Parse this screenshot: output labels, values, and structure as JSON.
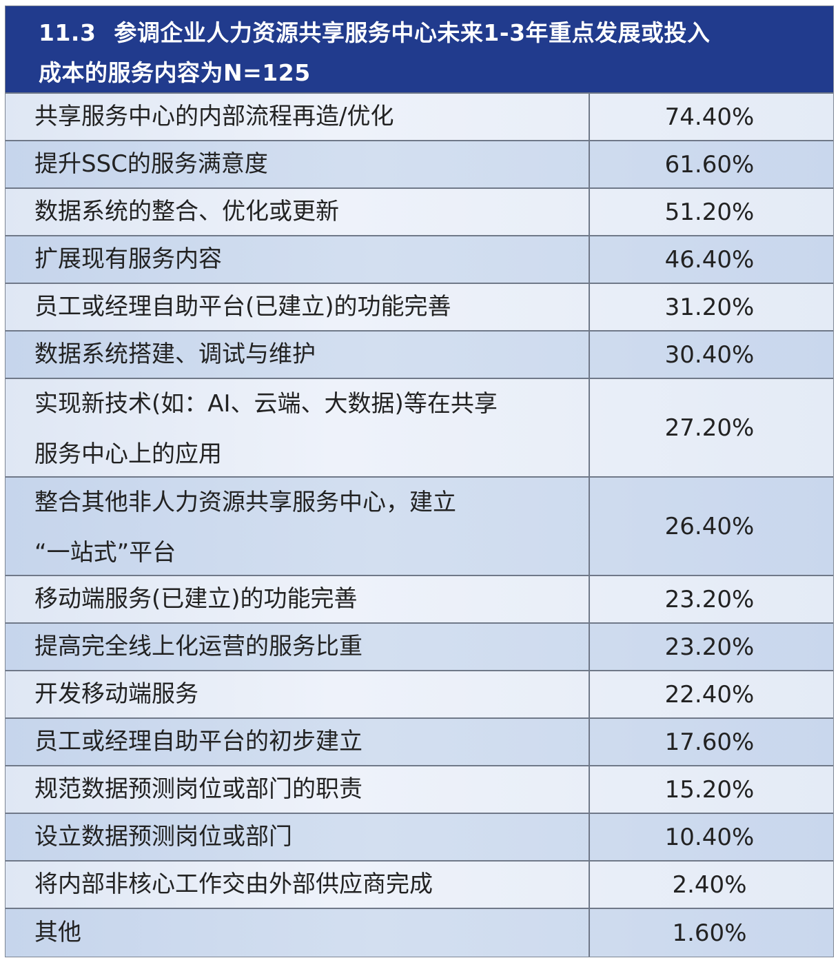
{
  "table": {
    "title_number": "11.3",
    "title_text": "参调企业人力资源共享服务中心未来1-3年重点发展或投入",
    "title_line2": "成本的服务内容为N=125",
    "colors": {
      "header_bg": "#213b8d",
      "row_light": "#e8eef8",
      "row_dark": "#cfdcef",
      "border": "#6f7888"
    },
    "rows": [
      {
        "label": "共享服务中心的内部流程再造/优化",
        "value": "74.40%"
      },
      {
        "label": "提升SSC的服务满意度",
        "value": "61.60%"
      },
      {
        "label": "数据系统的整合、优化或更新",
        "value": "51.20%"
      },
      {
        "label": "扩展现有服务内容",
        "value": "46.40%"
      },
      {
        "label": "员工或经理自助平台(已建立)的功能完善",
        "value": "31.20%"
      },
      {
        "label": "数据系统搭建、调试与维护",
        "value": "30.40%"
      },
      {
        "label": "实现新技术(如：AI、云端、大数据)等在共享",
        "label_line2": "服务中心上的应用",
        "value": "27.20%"
      },
      {
        "label": "整合其他非人力资源共享服务中心，建立",
        "label_line2": "“一站式”平台",
        "value": "26.40%"
      },
      {
        "label": "移动端服务(已建立)的功能完善",
        "value": "23.20%"
      },
      {
        "label": "提高完全线上化运营的服务比重",
        "value": "23.20%"
      },
      {
        "label": "开发移动端服务",
        "value": "22.40%"
      },
      {
        "label": "员工或经理自助平台的初步建立",
        "value": "17.60%"
      },
      {
        "label": "规范数据预测岗位或部门的职责",
        "value": "15.20%"
      },
      {
        "label": "设立数据预测岗位或部门",
        "value": "10.40%"
      },
      {
        "label": "将内部非核心工作交由外部供应商完成",
        "value": "2.40%"
      },
      {
        "label": "其他",
        "value": "1.60%"
      }
    ]
  }
}
